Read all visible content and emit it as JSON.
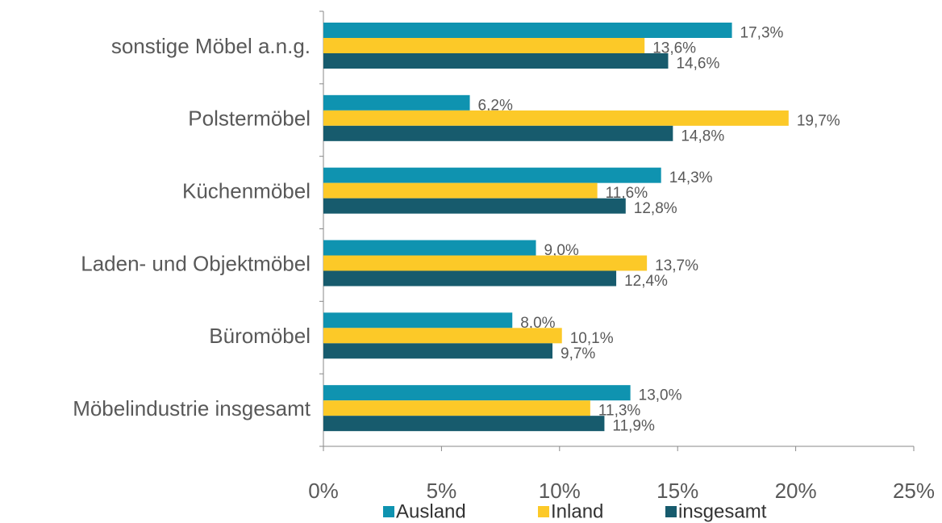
{
  "chart_data": {
    "type": "bar",
    "orientation": "horizontal",
    "categories": [
      "sonstige Möbel a.n.g.",
      "Polstermöbel",
      "Küchenmöbel",
      "Laden- und Objektmöbel",
      "Büromöbel",
      "Möbelindustrie insgesamt"
    ],
    "series": [
      {
        "name": "Ausland",
        "color": "#0f93b0",
        "values": [
          17.3,
          6.2,
          14.3,
          9.0,
          8.0,
          13.0
        ],
        "value_labels": [
          "17,3%",
          "6,2%",
          "14,3%",
          "9,0%",
          "8,0%",
          "13,0%"
        ]
      },
      {
        "name": "Inland",
        "color": "#fcc928",
        "values": [
          13.6,
          19.7,
          11.6,
          13.7,
          10.1,
          11.3
        ],
        "value_labels": [
          "13,6%",
          "19,7%",
          "11,6%",
          "13,7%",
          "10,1%",
          "11,3%"
        ]
      },
      {
        "name": "insgesamt",
        "color": "#175b6d",
        "values": [
          14.6,
          14.8,
          12.8,
          12.4,
          9.7,
          11.9
        ],
        "value_labels": [
          "14,6%",
          "14,8%",
          "12,8%",
          "12,4%",
          "9,7%",
          "11,9%"
        ]
      }
    ],
    "xlim": [
      0,
      25
    ],
    "xticks": [
      {
        "value": 0,
        "label": "0%"
      },
      {
        "value": 5,
        "label": "5%"
      },
      {
        "value": 10,
        "label": "10%"
      },
      {
        "value": 15,
        "label": "15%"
      },
      {
        "value": 20,
        "label": "20%"
      },
      {
        "value": 25,
        "label": "25%"
      }
    ],
    "legend": "bottom"
  }
}
